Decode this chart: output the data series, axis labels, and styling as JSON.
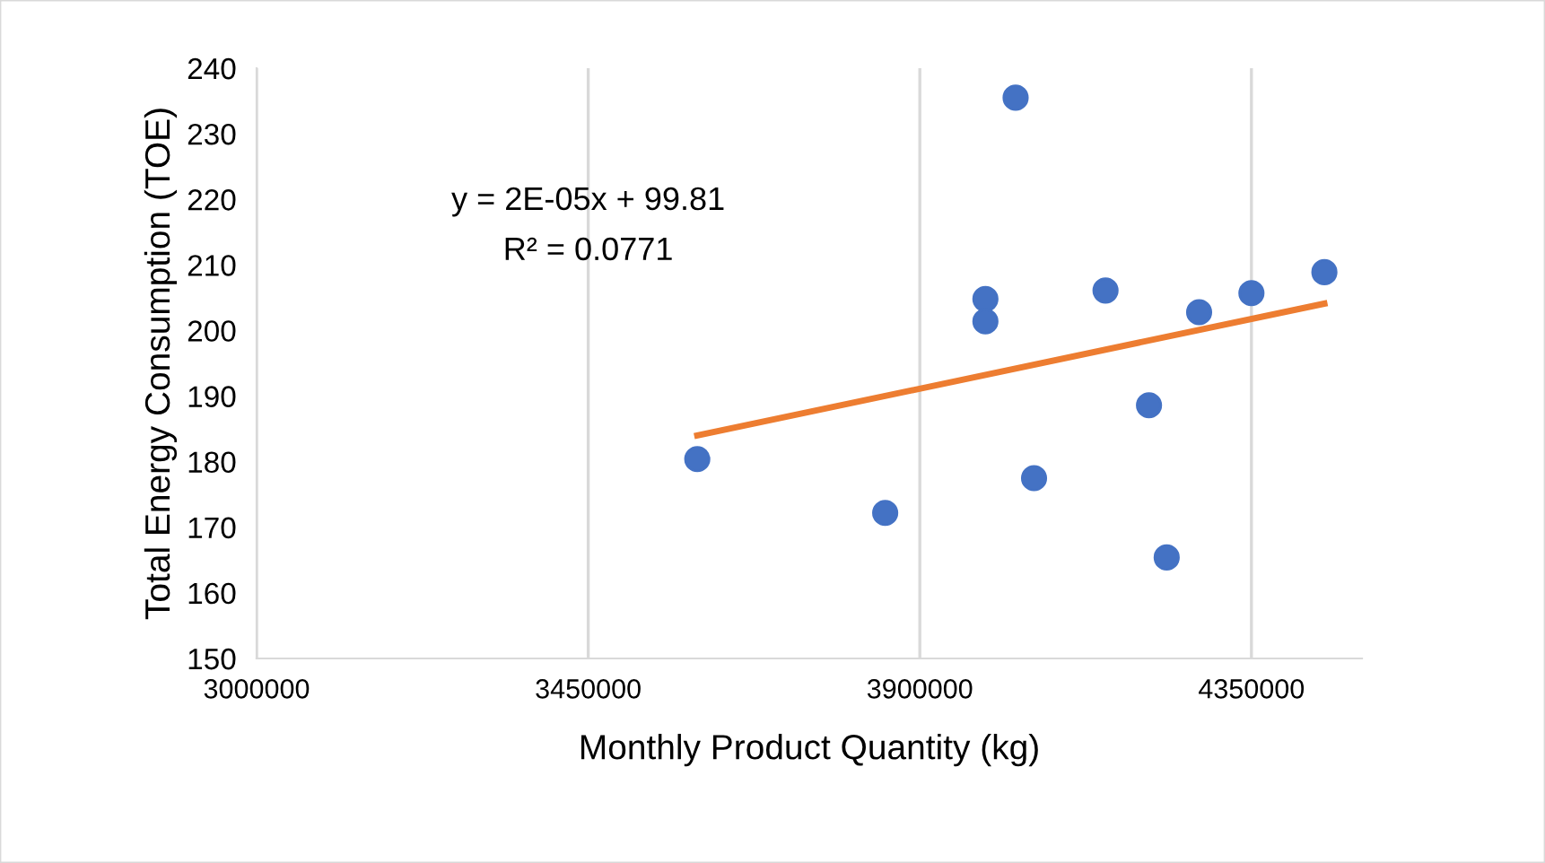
{
  "chart_data": {
    "type": "scatter",
    "xlabel": "Monthly Product Quantity (kg)",
    "ylabel": "Total Energy Consumption (TOE)",
    "xlim": [
      3000000,
      4500000
    ],
    "xticks": [
      3000000,
      3450000,
      3900000,
      4350000
    ],
    "ylim": [
      150,
      240
    ],
    "yticks": [
      150,
      160,
      170,
      180,
      190,
      200,
      210,
      220,
      230,
      240
    ],
    "grid": "x",
    "legend": false,
    "series": [
      {
        "marker": "circle",
        "color": "#4472c4",
        "x": [
          3598000,
          3853000,
          3989000,
          3989000,
          4030000,
          4055000,
          4152000,
          4211000,
          4235000,
          4279000,
          4350000,
          4449000
        ],
        "values": [
          180.4,
          172.2,
          204.8,
          201.4,
          235.5,
          177.5,
          206.1,
          188.6,
          165.4,
          202.8,
          205.7,
          208.9
        ]
      },
      {
        "type": "line",
        "marker": "none",
        "color": "#ed7d31",
        "x": [
          3598000,
          4449000
        ],
        "values": [
          184.0,
          204.1
        ]
      }
    ],
    "annotations": [
      "y = 2E-05x + 99.81",
      "R² = 0.0771"
    ]
  }
}
